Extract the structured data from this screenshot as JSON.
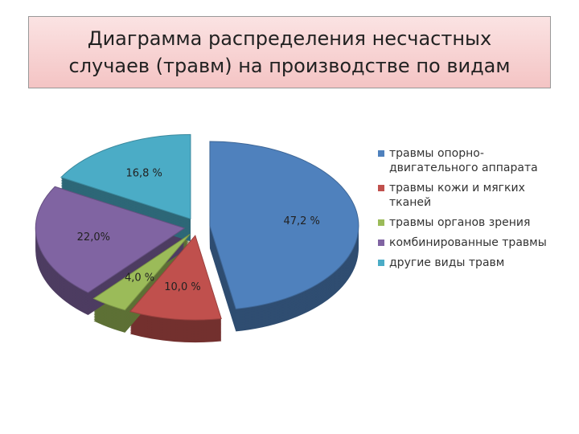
{
  "chart_data": {
    "type": "pie",
    "title": "Диаграмма распределения несчастных случаев (травм) на производстве по видам",
    "categories": [
      "травмы опорно-двигательного аппарата",
      "травмы кожи и мягких тканей",
      "травмы органов зрения",
      "комбинированные травмы",
      "другие виды травм"
    ],
    "values": [
      47.2,
      10.0,
      4.0,
      22.0,
      16.8
    ],
    "value_labels": [
      "47,2 %",
      "10,0 %",
      "4,0 %",
      "22,0%",
      "16,8 %"
    ],
    "colors": [
      "#4f81bd",
      "#c0504d",
      "#9bbb59",
      "#8064a2",
      "#4bacc6"
    ],
    "legend": "right"
  }
}
